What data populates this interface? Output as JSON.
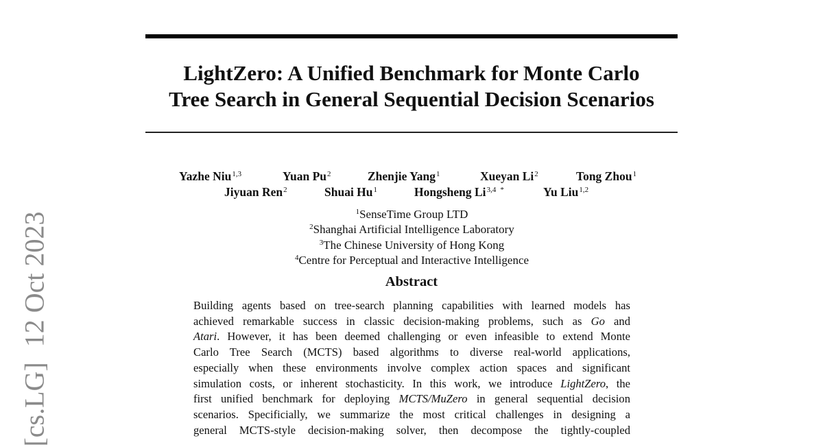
{
  "title_lines": [
    "LightZero: A Unified Benchmark for Monte Carlo",
    "Tree Search in General Sequential Decision Scenarios"
  ],
  "authors": [
    [
      {
        "name": "Yazhe Niu",
        "sup": "1,3"
      },
      {
        "name": "Yuan Pu",
        "sup": "2"
      },
      {
        "name": "Zhenjie Yang",
        "sup": "1"
      },
      {
        "name": "Xueyan Li",
        "sup": "2"
      },
      {
        "name": "Tong Zhou",
        "sup": "1"
      }
    ],
    [
      {
        "name": "Jiyuan Ren",
        "sup": "2"
      },
      {
        "name": "Shuai Hu",
        "sup": "1"
      },
      {
        "name": "Hongsheng Li",
        "sup": "3,4",
        "mark": "*"
      },
      {
        "name": "Yu Liu",
        "sup": "1,2"
      }
    ]
  ],
  "affiliations": [
    {
      "sup": "1",
      "name": "SenseTime Group LTD"
    },
    {
      "sup": "2",
      "name": "Shanghai Artificial Intelligence Laboratory"
    },
    {
      "sup": "3",
      "name": "The Chinese University of Hong Kong"
    },
    {
      "sup": "4",
      "name": "Centre for Perceptual and Interactive Intelligence"
    }
  ],
  "abstract": {
    "heading": "Abstract",
    "lines": [
      [
        "Building agents based on tree-search planning capabilities with learned models has"
      ],
      [
        "achieved remarkable success in classic decision-making problems, such as ",
        {
          "text": "Go",
          "style": "italic"
        },
        " and"
      ],
      [
        {
          "text": "Atari",
          "style": "italic"
        },
        ". However, it has been deemed challenging or even infeasible to extend Monte"
      ],
      [
        "Carlo Tree Search (MCTS) based algorithms to diverse real-world applications,"
      ],
      [
        "especially when these environments involve complex action spaces and significant"
      ],
      [
        "simulation costs, or inherent stochasticity. In this work, we introduce ",
        {
          "text": "LightZero",
          "style": "italic"
        },
        ", the"
      ],
      [
        "first unified benchmark for deploying ",
        {
          "text": "MCTS/MuZero",
          "style": "italic"
        },
        " in general sequential decision"
      ],
      [
        "scenarios. Specificially, we summarize the most critical challenges in designing a"
      ],
      [
        "general MCTS-style decision-making solver, then decompose the tightly-coupled"
      ]
    ]
  },
  "arxiv_stamp": {
    "category": "[cs.LG]",
    "date": "12 Oct 2023"
  }
}
